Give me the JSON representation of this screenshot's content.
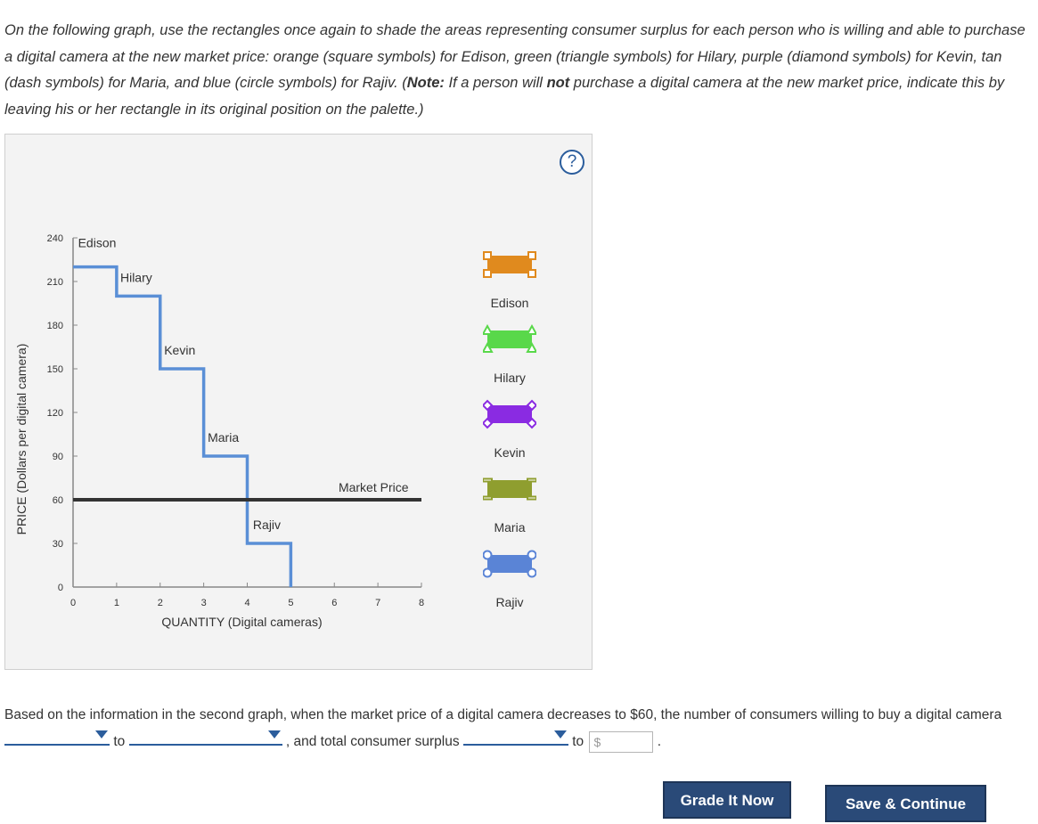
{
  "instructions": {
    "p1": "On the following graph, use the rectangles once again to shade the areas representing consumer surplus for each person who is willing and able to purchase a digital camera at the new market price: orange (square symbols) for Edison, green (triangle symbols) for Hilary, purple (diamond symbols) for Kevin, tan (dash symbols) for Maria, and blue (circle symbols) for Rajiv. (",
    "note_label": "Note:",
    "p2": " If a person will ",
    "not_word": "not",
    "p3": " purchase a digital camera at the new market price, indicate this by leaving his or her rectangle in its original position on the palette.)"
  },
  "help_symbol": "?",
  "graph": {
    "ylabel": "PRICE (Dollars per digital camera)",
    "xlabel": "QUANTITY (Digital cameras)",
    "yticks": [
      "0",
      "30",
      "60",
      "90",
      "120",
      "150",
      "180",
      "210",
      "240"
    ],
    "xticks": [
      "0",
      "1",
      "2",
      "3",
      "4",
      "5",
      "6",
      "7",
      "8"
    ],
    "market_price_label": "Market Price",
    "buyer_labels": [
      "Edison",
      "Hilary",
      "Kevin",
      "Maria",
      "Rajiv"
    ]
  },
  "chart_data": {
    "type": "line",
    "title": "",
    "xlabel": "QUANTITY (Digital cameras)",
    "ylabel": "PRICE (Dollars per digital camera)",
    "xlim": [
      0,
      8
    ],
    "ylim": [
      0,
      240
    ],
    "series": [
      {
        "name": "Demand",
        "steps": [
          {
            "buyer": "Edison",
            "x0": 0,
            "x1": 1,
            "price": 220
          },
          {
            "buyer": "Hilary",
            "x0": 1,
            "x1": 2,
            "price": 200
          },
          {
            "buyer": "Kevin",
            "x0": 2,
            "x1": 3,
            "price": 150
          },
          {
            "buyer": "Maria",
            "x0": 3,
            "x1": 4,
            "price": 90
          },
          {
            "buyer": "Rajiv",
            "x0": 4,
            "x1": 5,
            "price": 30
          }
        ]
      },
      {
        "name": "Market Price",
        "price": 60,
        "x0": 0,
        "x1": 8
      }
    ]
  },
  "palette": [
    {
      "label": "Edison",
      "color": "#e08a1e",
      "symbol": "square-icon"
    },
    {
      "label": "Hilary",
      "color": "#59d84a",
      "symbol": "triangle-icon"
    },
    {
      "label": "Kevin",
      "color": "#8a2be2",
      "symbol": "diamond-icon"
    },
    {
      "label": "Maria",
      "color": "#8f9e2f",
      "symbol": "dash-icon"
    },
    {
      "label": "Rajiv",
      "color": "#5a84d6",
      "symbol": "circle-icon"
    }
  ],
  "question": {
    "text1": "Based on the information in the second graph, when the market price of a digital camera decreases to $60, the number of consumers willing to buy a digital camera",
    "to1": "to",
    "text2": ", and total consumer surplus",
    "to2": "to",
    "end": "."
  },
  "buttons": {
    "grade": "Grade It Now",
    "save": "Save & Continue"
  }
}
